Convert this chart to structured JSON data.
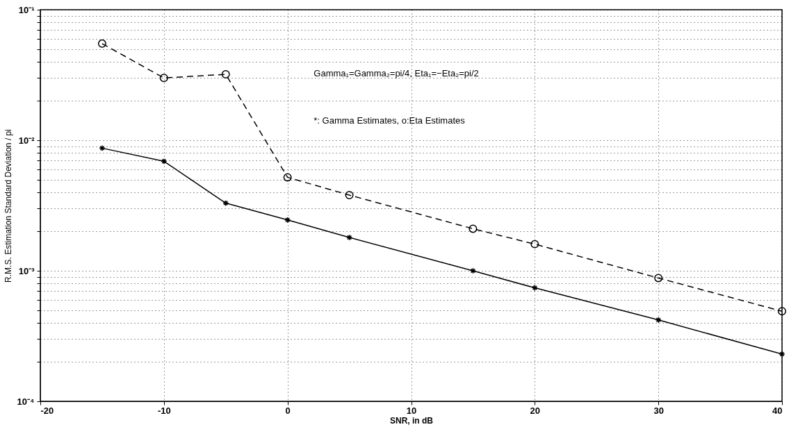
{
  "chart_data": {
    "type": "line",
    "xlabel": "SNR,    in dB",
    "ylabel": "R.M.S. Estimation Standard Deviation / pi",
    "x": [
      -15,
      -10,
      -5,
      0,
      5,
      15,
      20,
      30,
      40
    ],
    "series": [
      {
        "color": "#000000",
        "marker": "cross",
        "line_style": "solid",
        "values": [
          0.0087,
          0.0069,
          0.0033,
          0.00245,
          0.0018,
          0.001,
          0.00074,
          0.00042,
          0.00023
        ]
      },
      {
        "color": "#000000",
        "marker": "circle",
        "line_style": "dashed",
        "values": [
          0.055,
          0.03,
          0.032,
          0.0052,
          0.0038,
          0.0021,
          0.0016,
          0.00088,
          0.00049
        ]
      }
    ],
    "log": "y",
    "grid": true,
    "xlim": [
      -20,
      40
    ],
    "xticks": [
      -20,
      -10,
      0,
      10,
      20,
      30,
      40
    ],
    "ylim": [
      0.0001,
      0.1
    ],
    "yticks": [
      {
        "value": 0.0001,
        "label": "10⁻⁴"
      },
      {
        "value": 0.0002,
        "label": null
      },
      {
        "value": 0.0003,
        "label": null
      },
      {
        "value": 0.0004,
        "label": null
      },
      {
        "value": 0.0005,
        "label": null
      },
      {
        "value": 0.0006,
        "label": null
      },
      {
        "value": 0.0007,
        "label": null
      },
      {
        "value": 0.0008,
        "label": null
      },
      {
        "value": 0.0009,
        "label": null
      },
      {
        "value": 0.001,
        "label": "10⁻³"
      },
      {
        "value": 0.002,
        "label": null
      },
      {
        "value": 0.003,
        "label": null
      },
      {
        "value": 0.004,
        "label": null
      },
      {
        "value": 0.005,
        "label": null
      },
      {
        "value": 0.006,
        "label": null
      },
      {
        "value": 0.007,
        "label": null
      },
      {
        "value": 0.008,
        "label": null
      },
      {
        "value": 0.009,
        "label": null
      },
      {
        "value": 0.01,
        "label": "10⁻²"
      },
      {
        "value": 0.02,
        "label": null
      },
      {
        "value": 0.03,
        "label": null
      },
      {
        "value": 0.04,
        "label": null
      },
      {
        "value": 0.05,
        "label": null
      },
      {
        "value": 0.06,
        "label": null
      },
      {
        "value": 0.07,
        "label": null
      },
      {
        "value": 0.08,
        "label": null
      },
      {
        "value": 0.09,
        "label": null
      },
      {
        "value": 0.1,
        "label": "10⁻¹"
      }
    ],
    "annotations": [
      "Gamma₁=Gamma₂=pi/4, Eta₁=−Eta₂=pi/2",
      "*: Gamma Estimates,   o:Eta Estimates"
    ]
  }
}
